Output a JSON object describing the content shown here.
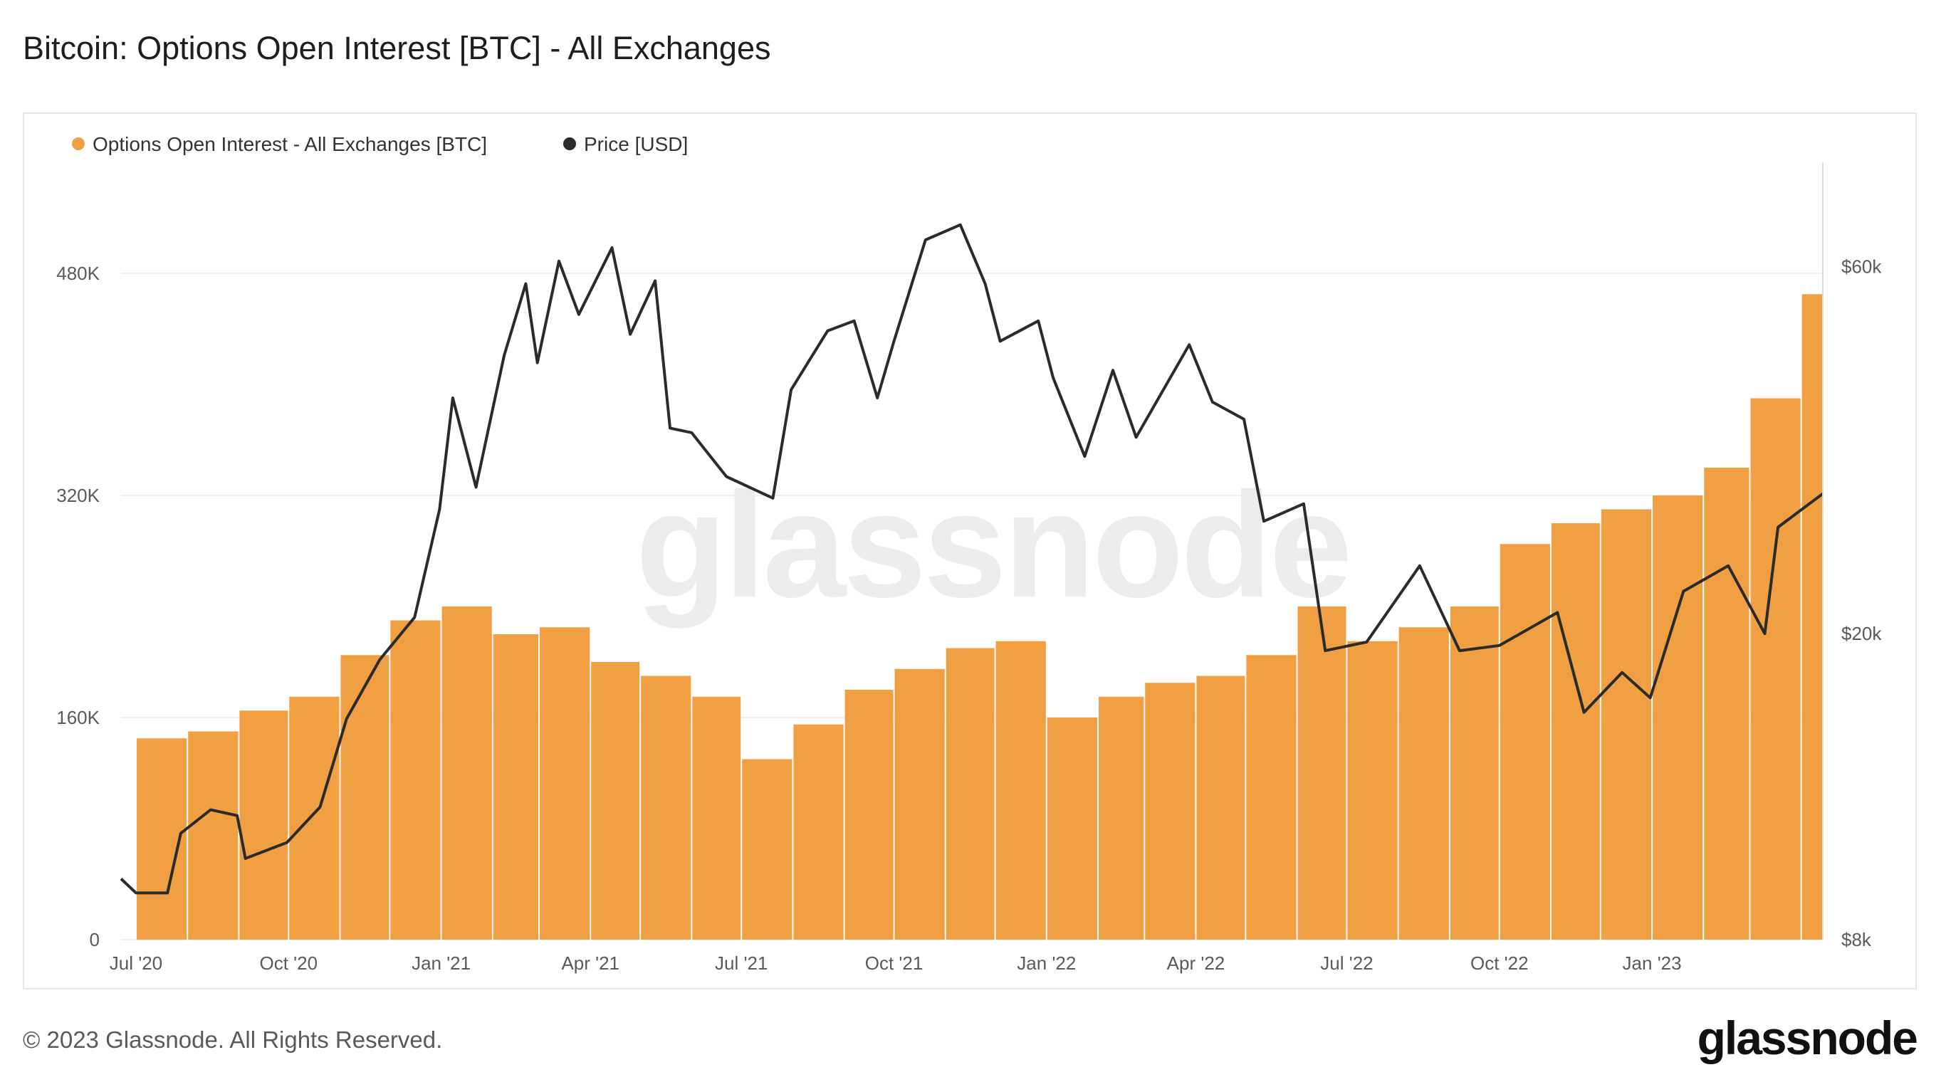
{
  "title": "Bitcoin: Options Open Interest [BTC] - All Exchanges",
  "footer": {
    "copyright": "© 2023 Glassnode. All Rights Reserved.",
    "logo": "glassnode"
  },
  "watermark": "glassnode",
  "colors": {
    "oi": "#F0A042",
    "price": "#2b2b2b",
    "grid": "#eeeeee"
  },
  "chart_data": {
    "type": "bar+line",
    "title": "Bitcoin: Options Open Interest [BTC] - All Exchanges",
    "legend": [
      {
        "key": "oi",
        "label": "Options Open Interest - All Exchanges [BTC]",
        "color": "#F0A042"
      },
      {
        "key": "price",
        "label": "Price [USD]",
        "color": "#2b2b2b"
      }
    ],
    "x_range": [
      "2020-06-22",
      "2023-04-14"
    ],
    "x_ticks": [
      {
        "label": "Jul '20",
        "date": "2020-07-01"
      },
      {
        "label": "Oct '20",
        "date": "2020-10-01"
      },
      {
        "label": "Jan '21",
        "date": "2021-01-01"
      },
      {
        "label": "Apr '21",
        "date": "2021-04-01"
      },
      {
        "label": "Jul '21",
        "date": "2021-07-01"
      },
      {
        "label": "Oct '21",
        "date": "2021-10-01"
      },
      {
        "label": "Jan '22",
        "date": "2022-01-01"
      },
      {
        "label": "Apr '22",
        "date": "2022-04-01"
      },
      {
        "label": "Jul '22",
        "date": "2022-07-01"
      },
      {
        "label": "Oct '22",
        "date": "2022-10-01"
      },
      {
        "label": "Jan '23",
        "date": "2023-01-01"
      }
    ],
    "y_left": {
      "min": 0,
      "max": 560000,
      "ticks": [
        {
          "label": "0",
          "value": 0
        },
        {
          "label": "160K",
          "value": 160000
        },
        {
          "label": "320K",
          "value": 320000
        },
        {
          "label": "480K",
          "value": 480000
        }
      ]
    },
    "y_right": {
      "scale": "log",
      "min": 8000,
      "max": 82000,
      "ticks": [
        {
          "label": "$8k",
          "value": 8000
        },
        {
          "label": "$20k",
          "value": 20000
        },
        {
          "label": "$60k",
          "value": 60000
        }
      ]
    },
    "series": [
      {
        "name": "Options Open Interest - All Exchanges [BTC]",
        "axis": "left",
        "monthly": [
          {
            "month": "2020-07",
            "value": 145000
          },
          {
            "month": "2020-08",
            "value": 150000
          },
          {
            "month": "2020-09",
            "value": 165000
          },
          {
            "month": "2020-10",
            "value": 175000
          },
          {
            "month": "2020-11",
            "value": 205000
          },
          {
            "month": "2020-12",
            "value": 230000
          },
          {
            "month": "2021-01",
            "value": 240000
          },
          {
            "month": "2021-02",
            "value": 220000
          },
          {
            "month": "2021-03",
            "value": 225000
          },
          {
            "month": "2021-04",
            "value": 200000
          },
          {
            "month": "2021-05",
            "value": 190000
          },
          {
            "month": "2021-06",
            "value": 175000
          },
          {
            "month": "2021-07",
            "value": 130000
          },
          {
            "month": "2021-08",
            "value": 155000
          },
          {
            "month": "2021-09",
            "value": 180000
          },
          {
            "month": "2021-10",
            "value": 195000
          },
          {
            "month": "2021-11",
            "value": 210000
          },
          {
            "month": "2021-12",
            "value": 215000
          },
          {
            "month": "2022-01",
            "value": 160000
          },
          {
            "month": "2022-02",
            "value": 175000
          },
          {
            "month": "2022-03",
            "value": 185000
          },
          {
            "month": "2022-04",
            "value": 190000
          },
          {
            "month": "2022-05",
            "value": 205000
          },
          {
            "month": "2022-06",
            "value": 240000
          },
          {
            "month": "2022-07",
            "value": 215000
          },
          {
            "month": "2022-08",
            "value": 225000
          },
          {
            "month": "2022-09",
            "value": 240000
          },
          {
            "month": "2022-10",
            "value": 285000
          },
          {
            "month": "2022-11",
            "value": 300000
          },
          {
            "month": "2022-12",
            "value": 310000
          },
          {
            "month": "2023-01",
            "value": 320000
          },
          {
            "month": "2023-02",
            "value": 340000
          },
          {
            "month": "2023-03",
            "value": 390000
          },
          {
            "month": "2023-04",
            "value": 465000
          }
        ]
      },
      {
        "name": "Price [USD]",
        "axis": "right",
        "points": [
          {
            "date": "2020-06-22",
            "value": 9600
          },
          {
            "date": "2020-07-01",
            "value": 9200
          },
          {
            "date": "2020-07-20",
            "value": 9200
          },
          {
            "date": "2020-07-28",
            "value": 11000
          },
          {
            "date": "2020-08-15",
            "value": 11800
          },
          {
            "date": "2020-08-31",
            "value": 11600
          },
          {
            "date": "2020-09-05",
            "value": 10200
          },
          {
            "date": "2020-09-30",
            "value": 10700
          },
          {
            "date": "2020-10-20",
            "value": 11900
          },
          {
            "date": "2020-11-05",
            "value": 15500
          },
          {
            "date": "2020-11-25",
            "value": 18500
          },
          {
            "date": "2020-12-16",
            "value": 21000
          },
          {
            "date": "2020-12-31",
            "value": 29000
          },
          {
            "date": "2021-01-08",
            "value": 40500
          },
          {
            "date": "2021-01-22",
            "value": 31000
          },
          {
            "date": "2021-02-08",
            "value": 46000
          },
          {
            "date": "2021-02-21",
            "value": 57000
          },
          {
            "date": "2021-02-28",
            "value": 45000
          },
          {
            "date": "2021-03-13",
            "value": 61000
          },
          {
            "date": "2021-03-25",
            "value": 52000
          },
          {
            "date": "2021-04-14",
            "value": 63500
          },
          {
            "date": "2021-04-25",
            "value": 49000
          },
          {
            "date": "2021-05-10",
            "value": 57500
          },
          {
            "date": "2021-05-19",
            "value": 37000
          },
          {
            "date": "2021-06-01",
            "value": 36500
          },
          {
            "date": "2021-06-22",
            "value": 32000
          },
          {
            "date": "2021-07-20",
            "value": 30000
          },
          {
            "date": "2021-07-31",
            "value": 41500
          },
          {
            "date": "2021-08-22",
            "value": 49500
          },
          {
            "date": "2021-09-07",
            "value": 51000
          },
          {
            "date": "2021-09-21",
            "value": 40500
          },
          {
            "date": "2021-10-01",
            "value": 48000
          },
          {
            "date": "2021-10-20",
            "value": 65000
          },
          {
            "date": "2021-11-10",
            "value": 68000
          },
          {
            "date": "2021-11-25",
            "value": 57000
          },
          {
            "date": "2021-12-04",
            "value": 48000
          },
          {
            "date": "2021-12-27",
            "value": 51000
          },
          {
            "date": "2022-01-05",
            "value": 43000
          },
          {
            "date": "2022-01-24",
            "value": 34000
          },
          {
            "date": "2022-02-10",
            "value": 44000
          },
          {
            "date": "2022-02-24",
            "value": 36000
          },
          {
            "date": "2022-03-28",
            "value": 47500
          },
          {
            "date": "2022-04-11",
            "value": 40000
          },
          {
            "date": "2022-04-30",
            "value": 38000
          },
          {
            "date": "2022-05-12",
            "value": 28000
          },
          {
            "date": "2022-06-05",
            "value": 29500
          },
          {
            "date": "2022-06-18",
            "value": 19000
          },
          {
            "date": "2022-07-13",
            "value": 19500
          },
          {
            "date": "2022-08-14",
            "value": 24500
          },
          {
            "date": "2022-09-07",
            "value": 19000
          },
          {
            "date": "2022-10-01",
            "value": 19300
          },
          {
            "date": "2022-11-05",
            "value": 21300
          },
          {
            "date": "2022-11-21",
            "value": 15800
          },
          {
            "date": "2022-12-14",
            "value": 17800
          },
          {
            "date": "2022-12-31",
            "value": 16500
          },
          {
            "date": "2023-01-20",
            "value": 22700
          },
          {
            "date": "2023-02-16",
            "value": 24500
          },
          {
            "date": "2023-03-10",
            "value": 20000
          },
          {
            "date": "2023-03-18",
            "value": 27500
          },
          {
            "date": "2023-04-14",
            "value": 30400
          }
        ]
      }
    ]
  }
}
